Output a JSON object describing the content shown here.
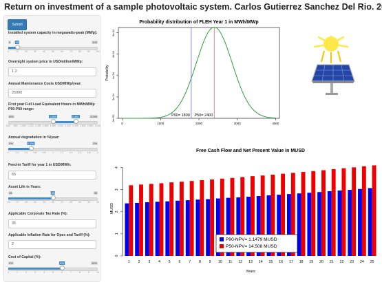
{
  "header": {
    "title": "Return on investment of a sample photovoltaic system. Carlos Gutierrez Sanchez Del Rio. 2016"
  },
  "sidebar": {
    "submit_label": "Submit",
    "capacity": {
      "label": "Installed system capacity in megawatts-peak (MWp):",
      "min": "0",
      "max": "100",
      "value": "10",
      "fraction": 0.1,
      "ticks": [
        "0",
        "10",
        "20",
        "30",
        "40",
        "50",
        "60",
        "70",
        "80",
        "90",
        "100"
      ]
    },
    "price": {
      "label": "Overnight system price in USDmillion/MWp:",
      "value": "1.2"
    },
    "maintenance": {
      "label": "Annual Maintenance Costs USD/MWp/year:",
      "value": "25000"
    },
    "fleh": {
      "label": "First year Full Load Equivalent Hours in MWh/MWp P90-P50 range:",
      "min": "600",
      "max": "3,000",
      "low": "1,800",
      "high": "2,400",
      "low_fraction": 0.5,
      "high_fraction": 0.75,
      "ticks": [
        "600",
        "800",
        "1,000",
        "1,200",
        "1,400",
        "1,600",
        "1,800",
        "2,000",
        "2,200",
        "2,400",
        "2,600",
        "2,800",
        "3,000"
      ]
    },
    "degradation": {
      "label": "Annual degradation in %/year:",
      "min": "0%",
      "max": "2%",
      "value": "0.5%",
      "fraction": 0.25,
      "ticks": [
        "0",
        "0.2",
        "0.4",
        "0.6",
        "0.8",
        "1",
        "1.2",
        "1.4",
        "1.6",
        "1.8",
        "2"
      ]
    },
    "tariff": {
      "label": "Feed-in Tariff for year 1 in USD/MWh:",
      "value": "65"
    },
    "asset_life": {
      "label": "Asset Life in Years:",
      "min": "15",
      "max": "35",
      "value": "25",
      "fraction": 0.5,
      "ticks": [
        "15",
        "17",
        "19",
        "21",
        "23",
        "25",
        "27",
        "29",
        "31",
        "33",
        "35"
      ]
    },
    "tax": {
      "label": "Applicable Corporate Tax Rate (%):",
      "value": "35"
    },
    "inflation": {
      "label": "Applicable Inflation Rate for Opex and Tariff (%):",
      "value": "2"
    },
    "capital": {
      "label": "Cost of Capital (%):",
      "min": "0%",
      "max": "10%",
      "value": "6%",
      "fraction": 0.6,
      "ticks": [
        "0",
        "1",
        "2",
        "3",
        "4",
        "5",
        "6",
        "7",
        "8",
        "9",
        "10"
      ]
    }
  },
  "chart_data": [
    {
      "type": "line",
      "title": "Probability distribution of FLEH Year 1 in MWh/MWp",
      "xlabel": "",
      "ylabel": "Probability",
      "xlim": [
        -100,
        4100
      ],
      "ylim": [
        0,
        0.00085
      ],
      "x_ticks": [
        "0",
        "1000",
        "2000",
        "3000",
        "4000"
      ],
      "y_ticks": [
        "0e+00",
        "2e-04",
        "4e-04",
        "6e-04",
        "8e-04"
      ],
      "distribution": {
        "mean": 2400,
        "sd": 468
      },
      "vlines": [
        {
          "x": 1800,
          "label": "P90= 1800",
          "color": "#6a6ae0"
        },
        {
          "x": 2400,
          "label": "P50= 2400",
          "color": "#e07070"
        }
      ],
      "line_color": "#2e9e3a"
    },
    {
      "type": "bar",
      "title": "Free Cash Flow and Net Present Value in MUSD",
      "xlabel": "Years",
      "ylabel": "MUSD",
      "ylim": [
        0,
        4.3
      ],
      "y_ticks": [
        "0",
        "1",
        "2",
        "3",
        "4"
      ],
      "categories": [
        "1",
        "2",
        "3",
        "4",
        "5",
        "6",
        "7",
        "8",
        "9",
        "10",
        "11",
        "12",
        "13",
        "14",
        "15",
        "16",
        "17",
        "18",
        "19",
        "20",
        "21",
        "22",
        "23",
        "24",
        "25"
      ],
      "series": [
        {
          "name": "P90-NPV= 1.1479 MUSD",
          "color": "#0000ee",
          "values": [
            2.38,
            2.4,
            2.43,
            2.45,
            2.47,
            2.5,
            2.52,
            2.55,
            2.57,
            2.6,
            2.63,
            2.65,
            2.68,
            2.71,
            2.74,
            2.77,
            2.8,
            2.83,
            2.86,
            2.89,
            2.93,
            2.96,
            2.99,
            3.03,
            3.07
          ]
        },
        {
          "name": "P50-NPV= 14.508 MUSD",
          "color": "#ee0000",
          "values": [
            3.2,
            3.23,
            3.26,
            3.29,
            3.33,
            3.36,
            3.39,
            3.43,
            3.46,
            3.5,
            3.53,
            3.57,
            3.61,
            3.64,
            3.68,
            3.72,
            3.76,
            3.8,
            3.84,
            3.88,
            3.93,
            3.97,
            4.01,
            4.06,
            4.1
          ]
        }
      ]
    }
  ]
}
